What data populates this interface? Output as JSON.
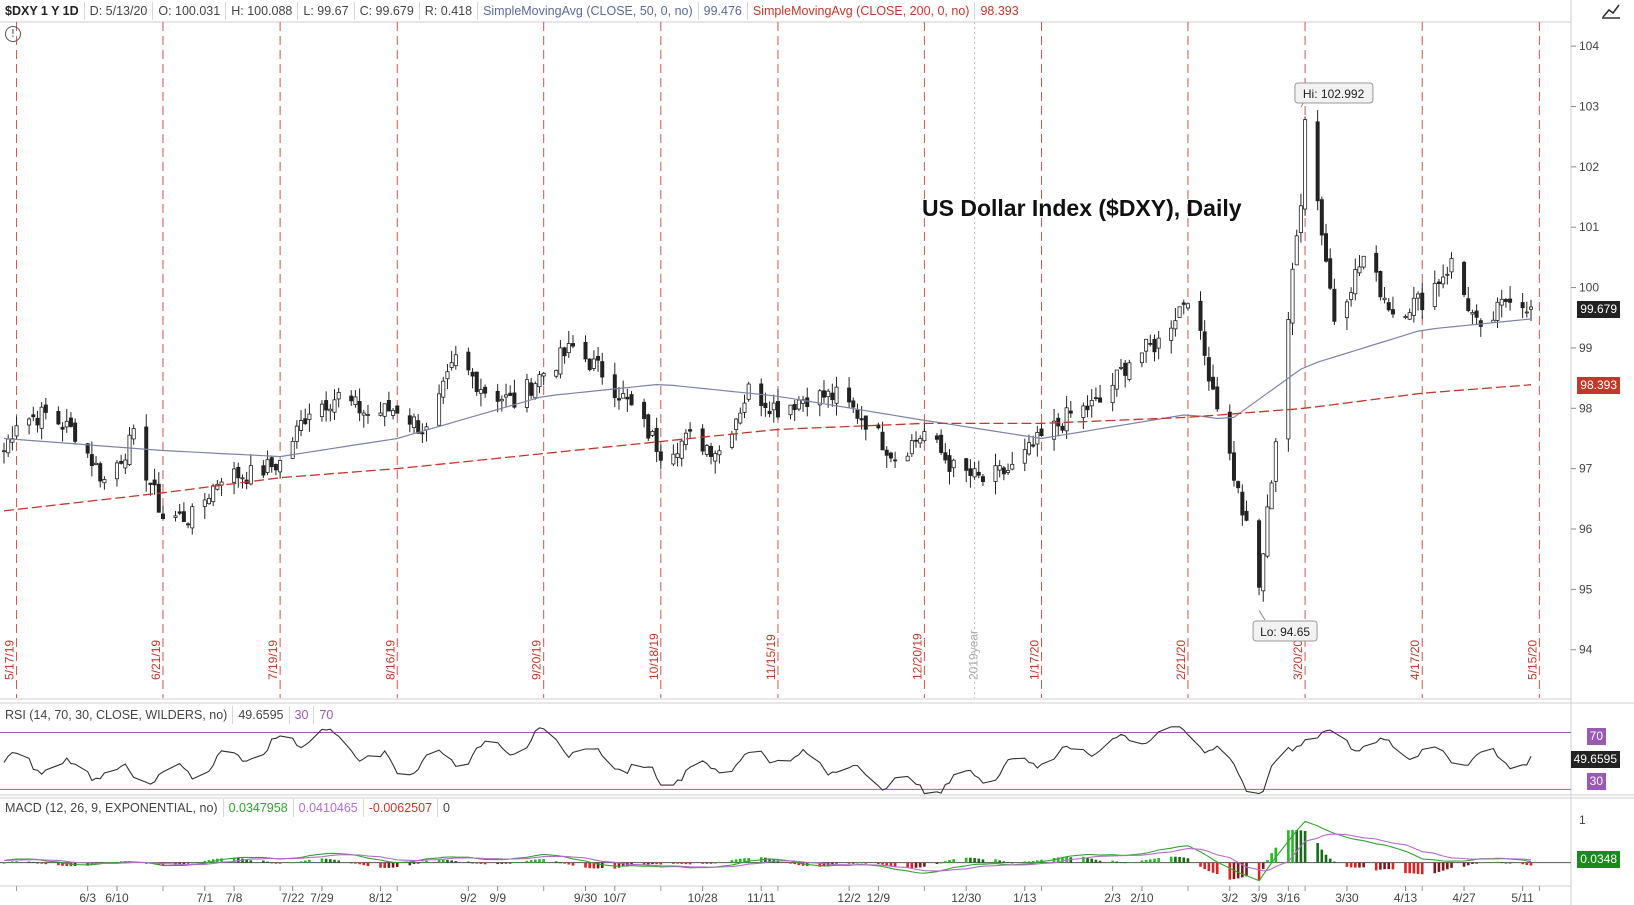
{
  "header": {
    "symbol": "$DXY 1 Y 1D",
    "date": "D: 5/13/20",
    "open": "O: 100.031",
    "high": "H: 100.088",
    "low": "L: 99.67",
    "close": "C: 99.679",
    "range": "R: 0.418",
    "sma50_label": "SimpleMovingAvg (CLOSE, 50, 0, no)",
    "sma50_value": "99.476",
    "sma200_label": "SimpleMovingAvg (CLOSE, 200, 0, no)",
    "sma200_value": "98.393"
  },
  "rsi_header": {
    "label": "RSI (14, 70, 30, CLOSE, WILDERS, no)",
    "value": "49.6595",
    "oversold": "30",
    "overbought": "70"
  },
  "macd_header": {
    "label": "MACD (12, 26, 9, EXPONENTIAL, no)",
    "value": "0.0347958",
    "avg": "0.0410465",
    "diff": "-0.0062507",
    "zero": "0"
  },
  "badges": {
    "price_last": "99.679",
    "sma200_last": "98.393",
    "rsi_70": "70",
    "rsi_last": "49.6595",
    "rsi_30": "30",
    "macd_last": "0.0348"
  },
  "annotations": {
    "hi": "Hi: 102.992",
    "lo": "Lo: 94.65",
    "year": "2019year"
  },
  "colors": {
    "up": "#2a8a2a",
    "down": "#cc2222",
    "sma50": "#7d84a8",
    "sma200": "#c0392b",
    "rsi": "#333333",
    "rsi_level": "#9b59b6",
    "macd_value": "#2fa52f",
    "macd_avg": "#b46ccc"
  },
  "chart_data": {
    "type": "line",
    "title": "US Dollar Index ($DXY), Daily",
    "series": [
      {
        "name": "Close",
        "x": [
          "5/14/19",
          "5/17/19",
          "5/24/19",
          "5/31/19",
          "6/7/19",
          "6/14/19",
          "6/21/19",
          "6/28/19",
          "7/5/19",
          "7/12/19",
          "7/19/19",
          "7/26/19",
          "8/2/19",
          "8/9/19",
          "8/16/19",
          "8/23/19",
          "8/30/19",
          "9/6/19",
          "9/13/19",
          "9/20/19",
          "9/27/19",
          "10/4/19",
          "10/11/19",
          "10/18/19",
          "10/25/19",
          "11/1/19",
          "11/8/19",
          "11/15/19",
          "11/22/19",
          "11/29/19",
          "12/6/19",
          "12/13/19",
          "12/20/19",
          "12/27/19",
          "1/3/20",
          "1/10/20",
          "1/17/20",
          "1/24/20",
          "1/31/20",
          "2/7/20",
          "2/14/20",
          "2/21/20",
          "2/28/20",
          "3/6/20",
          "3/9/20",
          "3/13/20",
          "3/19/20",
          "3/20/20",
          "3/27/20",
          "4/3/20",
          "4/10/20",
          "4/17/20",
          "4/24/20",
          "5/1/20",
          "5/8/20",
          "5/13/20"
        ],
        "values": [
          97.3,
          97.8,
          97.9,
          97.6,
          96.8,
          97.5,
          96.2,
          96.2,
          96.9,
          96.9,
          97.1,
          98.0,
          98.2,
          97.9,
          98.0,
          97.6,
          98.8,
          98.3,
          98.1,
          98.6,
          99.0,
          98.6,
          98.0,
          97.3,
          97.5,
          97.3,
          98.3,
          98.0,
          98.2,
          98.2,
          97.8,
          97.2,
          97.6,
          97.0,
          96.8,
          97.0,
          97.5,
          97.9,
          98.1,
          98.8,
          99.1,
          99.9,
          98.1,
          96.0,
          95.0,
          97.5,
          101.5,
          102.9,
          99.5,
          100.5,
          99.6,
          99.8,
          100.4,
          99.2,
          99.9,
          99.68
        ]
      },
      {
        "name": "SimpleMovingAvg (CLOSE, 50, 0, no)",
        "x": [
          "5/14/19",
          "6/21/19",
          "7/19/19",
          "8/16/19",
          "9/20/19",
          "10/18/19",
          "11/15/19",
          "12/20/19",
          "1/17/20",
          "2/21/20",
          "3/2/20",
          "3/20/20",
          "4/17/20",
          "5/13/20"
        ],
        "values": [
          97.5,
          97.3,
          97.2,
          97.5,
          98.2,
          98.4,
          98.2,
          97.8,
          97.5,
          97.9,
          97.8,
          98.7,
          99.3,
          99.48
        ]
      },
      {
        "name": "SimpleMovingAvg (CLOSE, 200, 0, no)",
        "x": [
          "5/14/19",
          "6/21/19",
          "7/19/19",
          "8/16/19",
          "9/20/19",
          "10/18/19",
          "11/15/19",
          "12/20/19",
          "1/17/20",
          "2/21/20",
          "3/20/20",
          "4/17/20",
          "5/13/20"
        ],
        "values": [
          96.3,
          96.6,
          96.85,
          97.0,
          97.25,
          97.45,
          97.65,
          97.75,
          97.75,
          97.85,
          98.0,
          98.25,
          98.39
        ]
      },
      {
        "name": "RSI (14, 70, 30, CLOSE, WILDERS, no)",
        "x": [
          "5/14/19",
          "6/21/19",
          "7/29/19",
          "8/16/19",
          "9/20/19",
          "10/18/19",
          "11/15/19",
          "12/20/19",
          "1/17/20",
          "2/21/20",
          "3/9/20",
          "3/20/20",
          "4/17/20",
          "5/13/20"
        ],
        "values": [
          50,
          38,
          70,
          45,
          66,
          38,
          55,
          30,
          52,
          73,
          28,
          70,
          55,
          49.66
        ]
      },
      {
        "name": "MACD (12, 26, 9, EXPONENTIAL, no)",
        "x": [
          "5/14/19",
          "6/21/19",
          "7/29/19",
          "8/16/19",
          "9/20/19",
          "10/18/19",
          "11/15/19",
          "12/20/19",
          "1/17/20",
          "2/21/20",
          "3/9/20",
          "3/20/20",
          "4/17/20",
          "5/13/20"
        ],
        "values": [
          0.05,
          -0.05,
          0.2,
          0.05,
          0.15,
          -0.15,
          0.05,
          -0.2,
          0.05,
          0.35,
          -0.4,
          0.95,
          0.1,
          0.0348
        ]
      }
    ],
    "xticks": [
      "6/3",
      "6/10",
      "7/1",
      "7/8",
      "7/22",
      "7/29",
      "8/12",
      "9/2",
      "9/9",
      "9/30",
      "10/7",
      "10/28",
      "11/11",
      "12/2",
      "12/9",
      "12/30",
      "1/13",
      "2/3",
      "2/10",
      "3/2",
      "3/9",
      "3/16",
      "3/30",
      "4/13",
      "4/27",
      "5/11"
    ],
    "expiration_labels": [
      "5/17/19",
      "6/21/19",
      "7/19/19",
      "8/16/19",
      "9/20/19",
      "10/18/19",
      "11/15/19",
      "12/20/19",
      "1/17/20",
      "2/21/20",
      "3/20/20",
      "4/17/20",
      "5/15/20"
    ],
    "yticks": [
      "94",
      "95",
      "96",
      "97",
      "98",
      "99",
      "100",
      "101",
      "102",
      "103",
      "104"
    ],
    "ylim": [
      93.2,
      104.4
    ],
    "rsi_ylim": [
      26,
      76
    ],
    "macd_ylim": [
      -0.55,
      1.1
    ],
    "macd_ticks": [
      "1"
    ],
    "grid": false
  }
}
